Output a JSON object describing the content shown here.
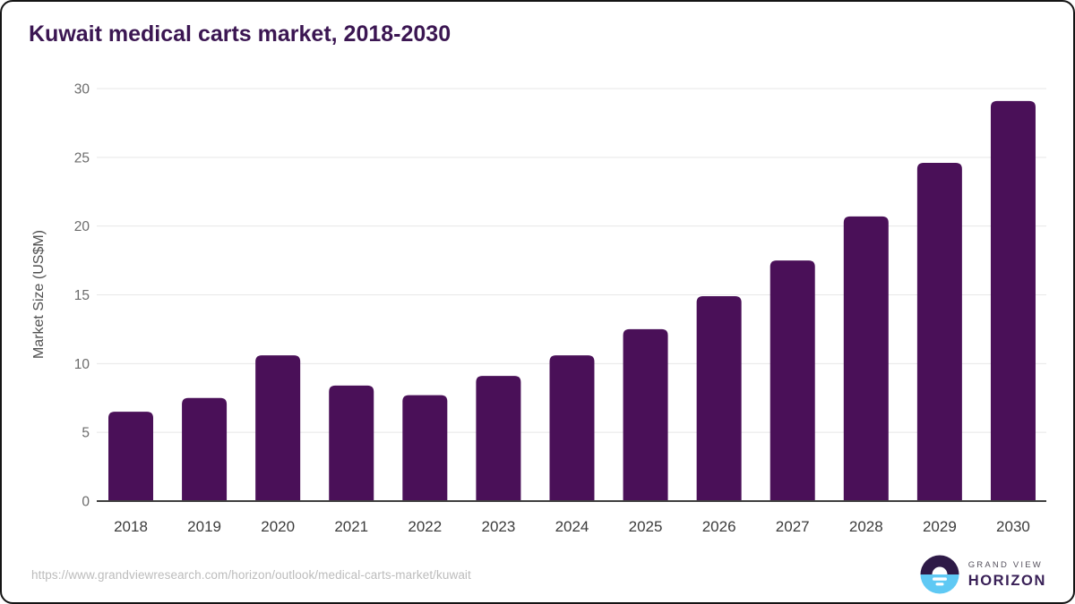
{
  "title": "Kuwait medical carts market, 2018-2030",
  "source_url": "https://www.grandviewresearch.com/horizon/outlook/medical-carts-market/kuwait",
  "logo": {
    "line1": "GRAND VIEW",
    "line2": "HORIZON"
  },
  "colors": {
    "bar": "#4a1058",
    "title": "#3b1652",
    "grid": "#e7e7e7",
    "axis_line": "#3f3f3f",
    "y_tick": "#6b6b6b",
    "x_tick": "#3c3c3c",
    "y_axis_title": "#4f4f4f",
    "url_text": "#bcbcbc",
    "logo_purple": "#2e1a47",
    "logo_blue": "#5fc9f4",
    "logo_text_gray": "#56525e",
    "logo_text_purple": "#392057"
  },
  "chart_data": {
    "type": "bar",
    "title": "Kuwait medical carts market, 2018-2030",
    "categories": [
      "2018",
      "2019",
      "2020",
      "2021",
      "2022",
      "2023",
      "2024",
      "2025",
      "2026",
      "2027",
      "2028",
      "2029",
      "2030"
    ],
    "values": [
      6.5,
      7.5,
      10.6,
      8.4,
      7.7,
      9.1,
      10.6,
      12.5,
      14.9,
      17.5,
      20.7,
      24.6,
      29.1
    ],
    "xlabel": "",
    "ylabel": "Market Size (US$M)",
    "ylim": [
      0,
      30
    ],
    "yticks": [
      0,
      5,
      10,
      15,
      20,
      25,
      30
    ],
    "grid": true,
    "legend": "none",
    "bar_color": "#4a1058"
  }
}
